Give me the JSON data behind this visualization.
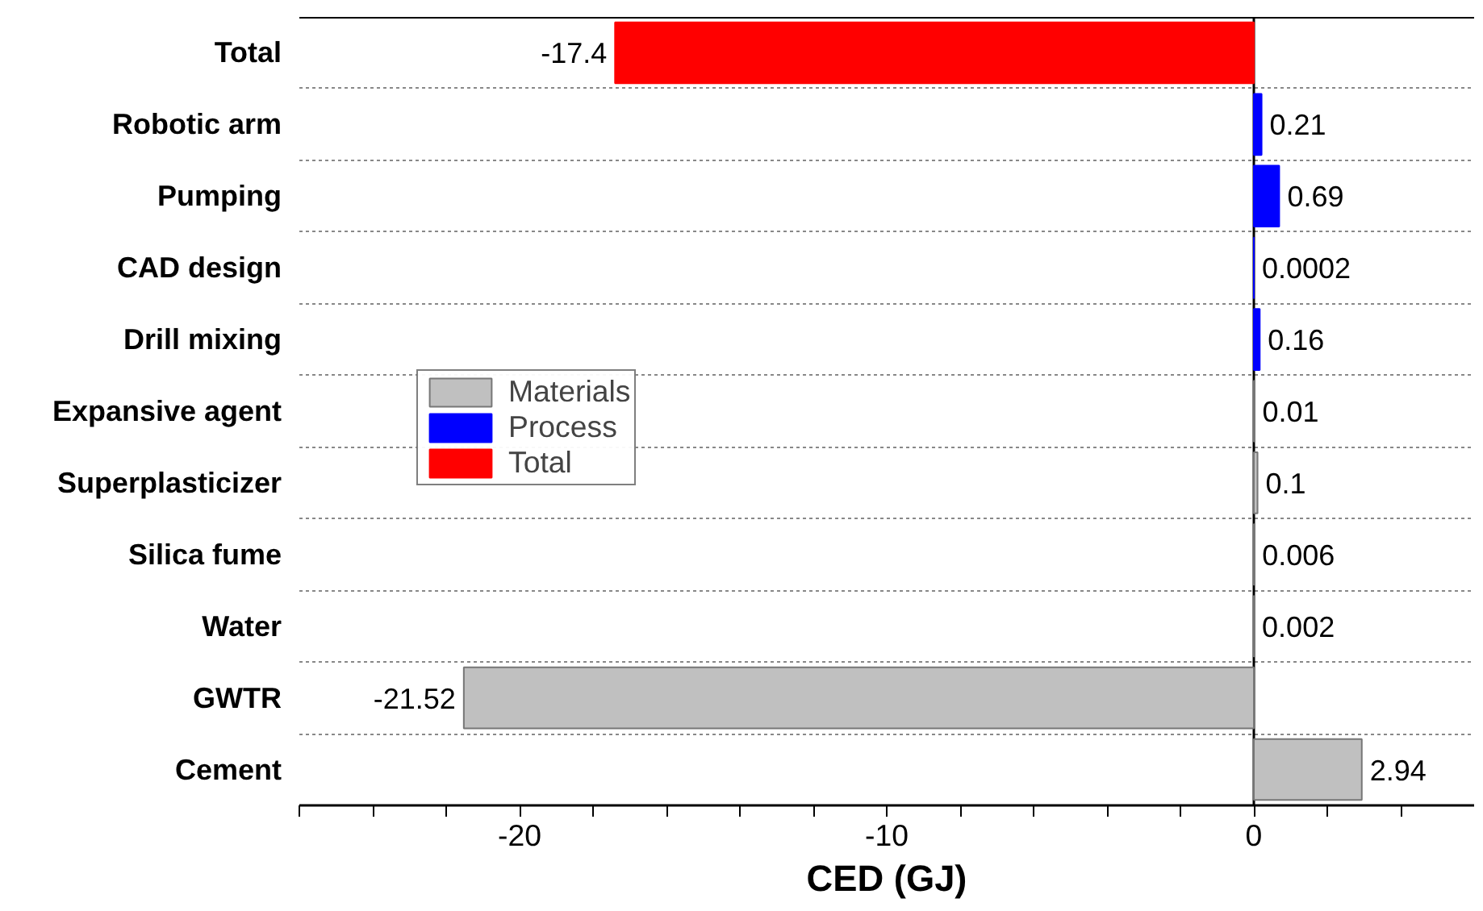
{
  "chart_data": {
    "type": "bar",
    "orientation": "horizontal",
    "xlabel": "CED (GJ)",
    "categories": [
      "Total",
      "Robotic arm",
      "Pumping",
      "CAD design",
      "Drill mixing",
      "Expansive agent",
      "Superplasticizer",
      "Silica fume",
      "Water",
      "GWTR",
      "Cement"
    ],
    "series": [
      {
        "name": "Materials",
        "color": "#c0c0c0",
        "values": [
          null,
          null,
          null,
          null,
          null,
          0.01,
          0.1,
          0.006,
          0.002,
          -21.52,
          2.94
        ]
      },
      {
        "name": "Process",
        "color": "#0000ff",
        "values": [
          null,
          0.21,
          0.69,
          0.0002,
          0.16,
          null,
          null,
          null,
          null,
          null,
          null
        ]
      },
      {
        "name": "Total",
        "color": "#ff0000",
        "values": [
          -17.4,
          null,
          null,
          null,
          null,
          null,
          null,
          null,
          null,
          null,
          null
        ]
      }
    ],
    "value_labels": [
      "-17.4",
      "0.21",
      "0.69",
      "0.0002",
      "0.16",
      "0.01",
      "0.1",
      "0.006",
      "0.002",
      "-21.52",
      "2.94"
    ],
    "xlim": [
      -26,
      6
    ],
    "xticks": [
      {
        "value": -26,
        "label": null
      },
      {
        "value": -24,
        "label": null
      },
      {
        "value": -22,
        "label": null
      },
      -20,
      {
        "value": -18,
        "label": null
      },
      {
        "value": -16,
        "label": null
      },
      {
        "value": -14,
        "label": null
      },
      {
        "value": -12,
        "label": null
      },
      -10,
      {
        "value": -8,
        "label": null
      },
      {
        "value": -6,
        "label": null
      },
      {
        "value": -4,
        "label": null
      },
      {
        "value": -2,
        "label": null
      },
      0,
      {
        "value": 2,
        "label": null
      },
      {
        "value": 4,
        "label": null
      }
    ],
    "grid": "y",
    "legend": "left"
  }
}
